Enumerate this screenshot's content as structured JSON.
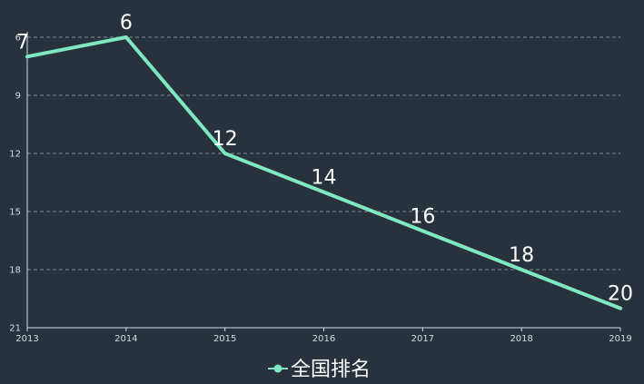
{
  "chart_data": {
    "type": "line",
    "x": [
      "2013",
      "2014",
      "2015",
      "2016",
      "2017",
      "2018",
      "2019"
    ],
    "series": [
      {
        "name": "全国排名",
        "values": [
          7,
          6,
          12,
          14,
          16,
          18,
          20
        ]
      }
    ],
    "y_ticks": [
      6,
      9,
      12,
      15,
      18,
      21
    ],
    "ylim": [
      6,
      21
    ],
    "y_inverted": true,
    "grid": true,
    "legend_position": "bottom-center",
    "colors": {
      "background": "#27323d",
      "line": "#7fe8c0",
      "grid": "#9aa3ab",
      "axis": "#d6dde3",
      "text": "#ffffff"
    }
  }
}
